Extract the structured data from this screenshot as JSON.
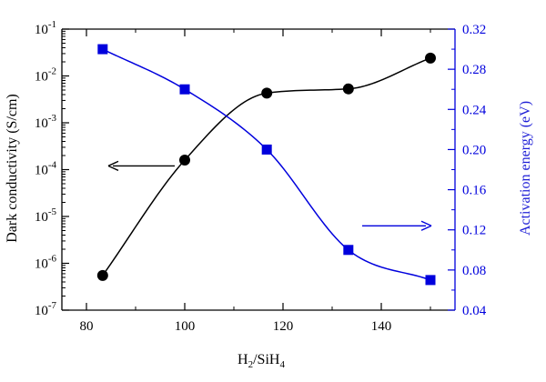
{
  "chart_data": {
    "type": "scatter",
    "xlabel": {
      "main": "H",
      "sub1": "2",
      "mid": "/SiH",
      "sub2": "4"
    },
    "ylabel_left": "Dark conductivity (S/cm)",
    "ylabel_right": "Activation energy (eV)",
    "xlim": [
      75,
      155
    ],
    "ylim_left": [
      1e-07,
      0.1
    ],
    "ylim_left_scale": "log",
    "ylim_right": [
      0.04,
      0.32
    ],
    "xticks": [
      "80",
      "100",
      "120",
      "140"
    ],
    "yticks_left": [
      {
        "base": "10",
        "exp": "-7"
      },
      {
        "base": "10",
        "exp": "-6"
      },
      {
        "base": "10",
        "exp": "-5"
      },
      {
        "base": "10",
        "exp": "-4"
      },
      {
        "base": "10",
        "exp": "-3"
      },
      {
        "base": "10",
        "exp": "-2"
      },
      {
        "base": "10",
        "exp": "-1"
      }
    ],
    "yticks_right": [
      "0.04",
      "0.08",
      "0.12",
      "0.16",
      "0.20",
      "0.24",
      "0.28",
      "0.32"
    ],
    "series": [
      {
        "axis": "left",
        "marker": "circle",
        "color": "#000000",
        "x": [
          83.3,
          100,
          116.7,
          133.3,
          150
        ],
        "y": [
          5.5e-07,
          0.00016,
          0.0043,
          0.0053,
          0.024
        ]
      },
      {
        "axis": "right",
        "marker": "square",
        "color": "#0000dd",
        "x": [
          83.3,
          100,
          116.7,
          133.3,
          150
        ],
        "y": [
          0.3,
          0.26,
          0.2,
          0.1,
          0.07
        ]
      }
    ],
    "annotations": [
      {
        "type": "arrow",
        "direction": "left",
        "color": "#000000",
        "refers_to": "left-axis"
      },
      {
        "type": "arrow",
        "direction": "right",
        "color": "#0000dd",
        "refers_to": "right-axis"
      }
    ],
    "grid": false,
    "legend": "none"
  }
}
